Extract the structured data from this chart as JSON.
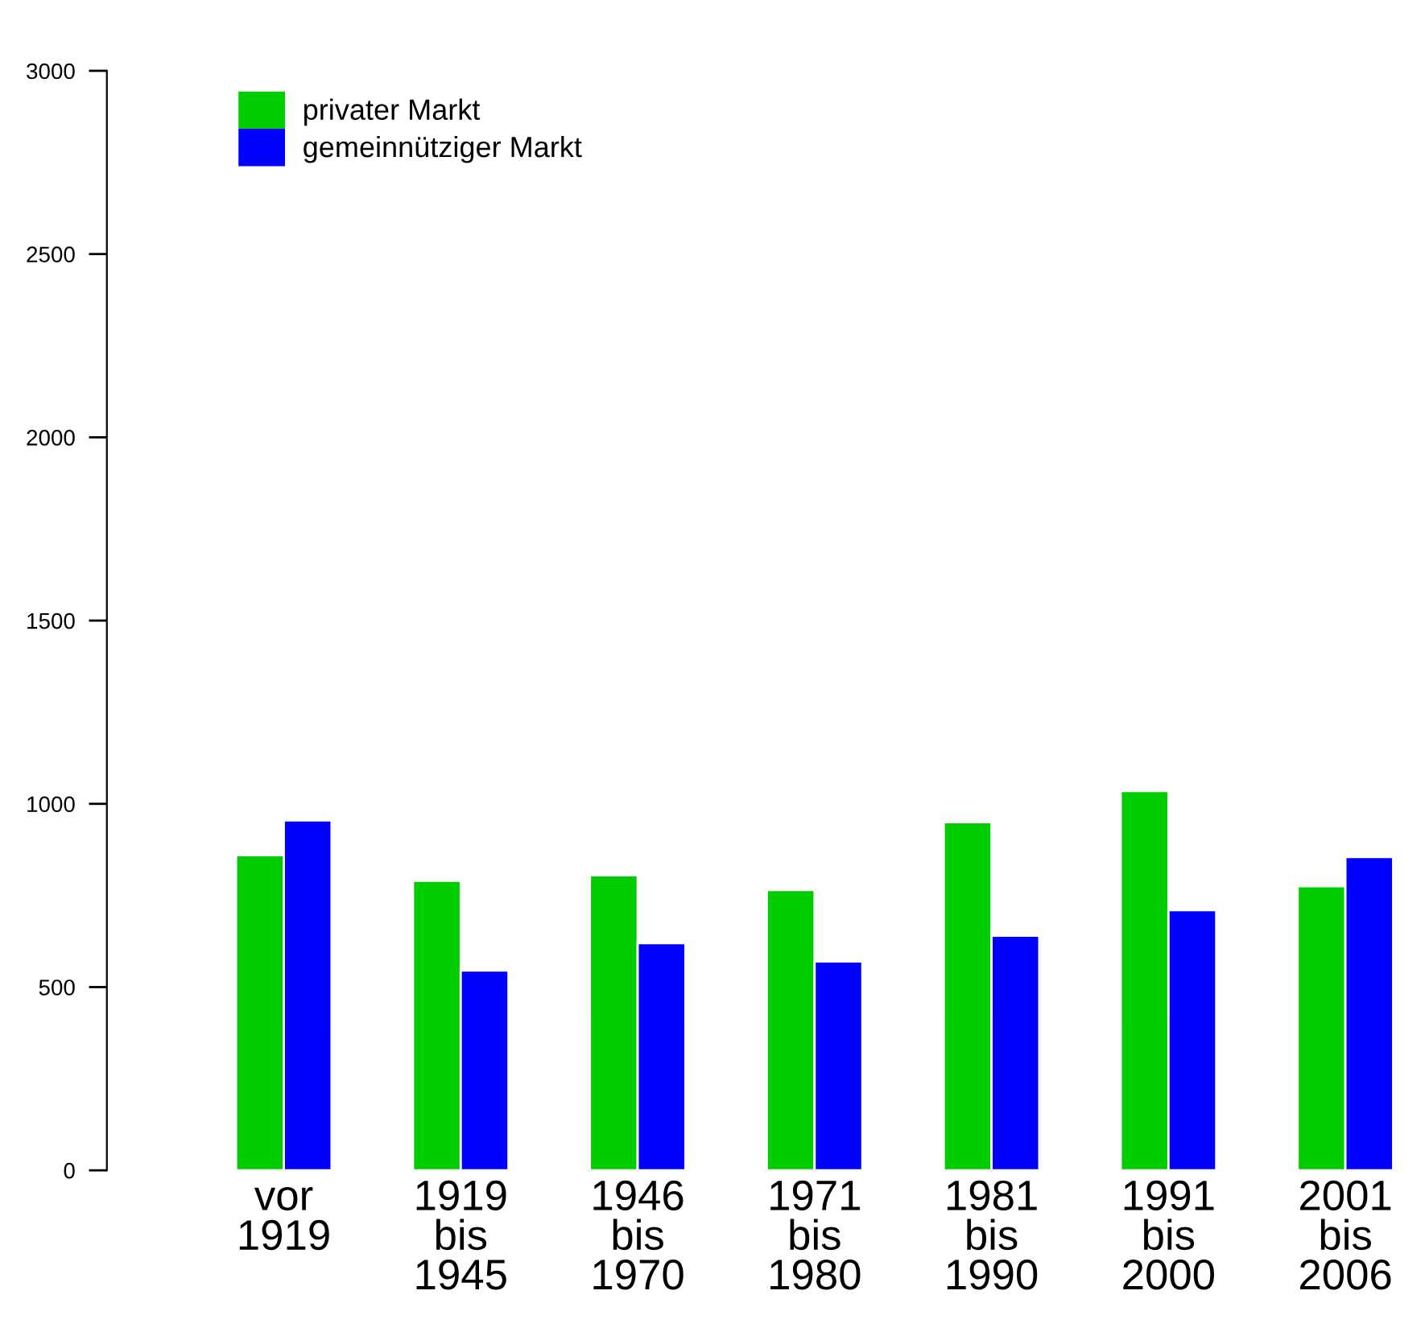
{
  "chart_data": {
    "type": "bar",
    "categories": [
      "vor\n1919",
      "1919\nbis\n1945",
      "1946\nbis\n1970",
      "1971\nbis\n1980",
      "1981\nbis\n1990",
      "1991\nbis\n2000",
      "2001\nbis\n2006"
    ],
    "series": [
      {
        "name": "privater Markt",
        "color": "#00cd00",
        "values": [
          860,
          790,
          805,
          765,
          950,
          1035,
          775
        ]
      },
      {
        "name": "gemeinnütziger Markt",
        "color": "#0000ff",
        "values": [
          955,
          545,
          620,
          570,
          640,
          710,
          855
        ]
      }
    ],
    "ylim": [
      0,
      3000
    ],
    "yticks": [
      0,
      500,
      1000,
      1500,
      2000,
      2500,
      3000
    ],
    "grid": false,
    "legend": "top left"
  }
}
